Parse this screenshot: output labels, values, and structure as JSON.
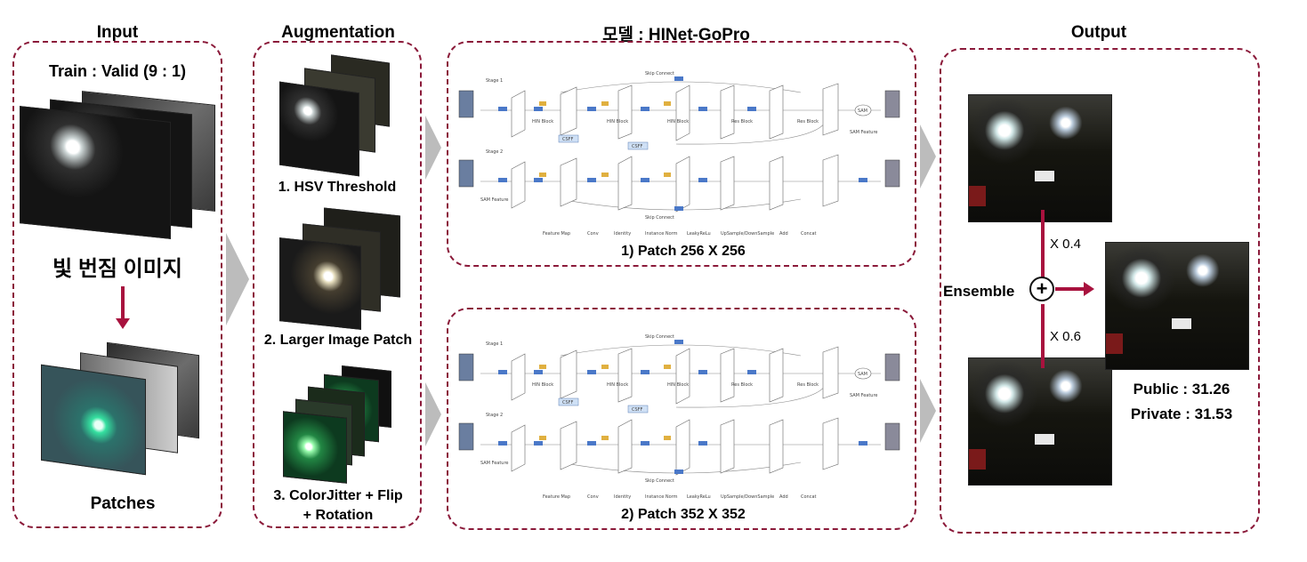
{
  "headings": {
    "input": "Input",
    "augmentation": "Augmentation",
    "model_prefix": "모델",
    "model_name": " : HINet-GoPro",
    "output": "Output"
  },
  "input": {
    "split": "Train : Valid (9 : 1)",
    "blur_label": "빛 번짐 이미지",
    "patches_label": "Patches"
  },
  "augmentation": {
    "step1": "1. HSV Threshold",
    "step2": "2. Larger Image Patch",
    "step3_line1": "3. ColorJitter + Flip",
    "step3_line2": "+ Rotation"
  },
  "model": {
    "patch1": "1) Patch 256 X 256",
    "patch2": "2) Patch 352 X 352",
    "stage1": "Stage 1",
    "stage2": "Stage 2",
    "hin_block": "HIN Block",
    "res_block": "Res Block",
    "skip_connect": "Skip Connect",
    "csff": "CSFF",
    "sam": "SAM",
    "sam_feature": "SAM Feature",
    "legend": [
      "Feature Map",
      "Conv",
      "Identity",
      "Instance Norm",
      "LeakyReLu",
      "UpSample/DownSample",
      "Add",
      "Concat"
    ]
  },
  "output": {
    "weight1": "X 0.4",
    "weight2": "X 0.6",
    "ensemble": "Ensemble",
    "public": "Public : 31.26",
    "private": "Private : 31.53"
  },
  "colors": {
    "accent": "#8b1a3a",
    "arrow": "#a8123e",
    "chevron": "#bcbcbc"
  }
}
